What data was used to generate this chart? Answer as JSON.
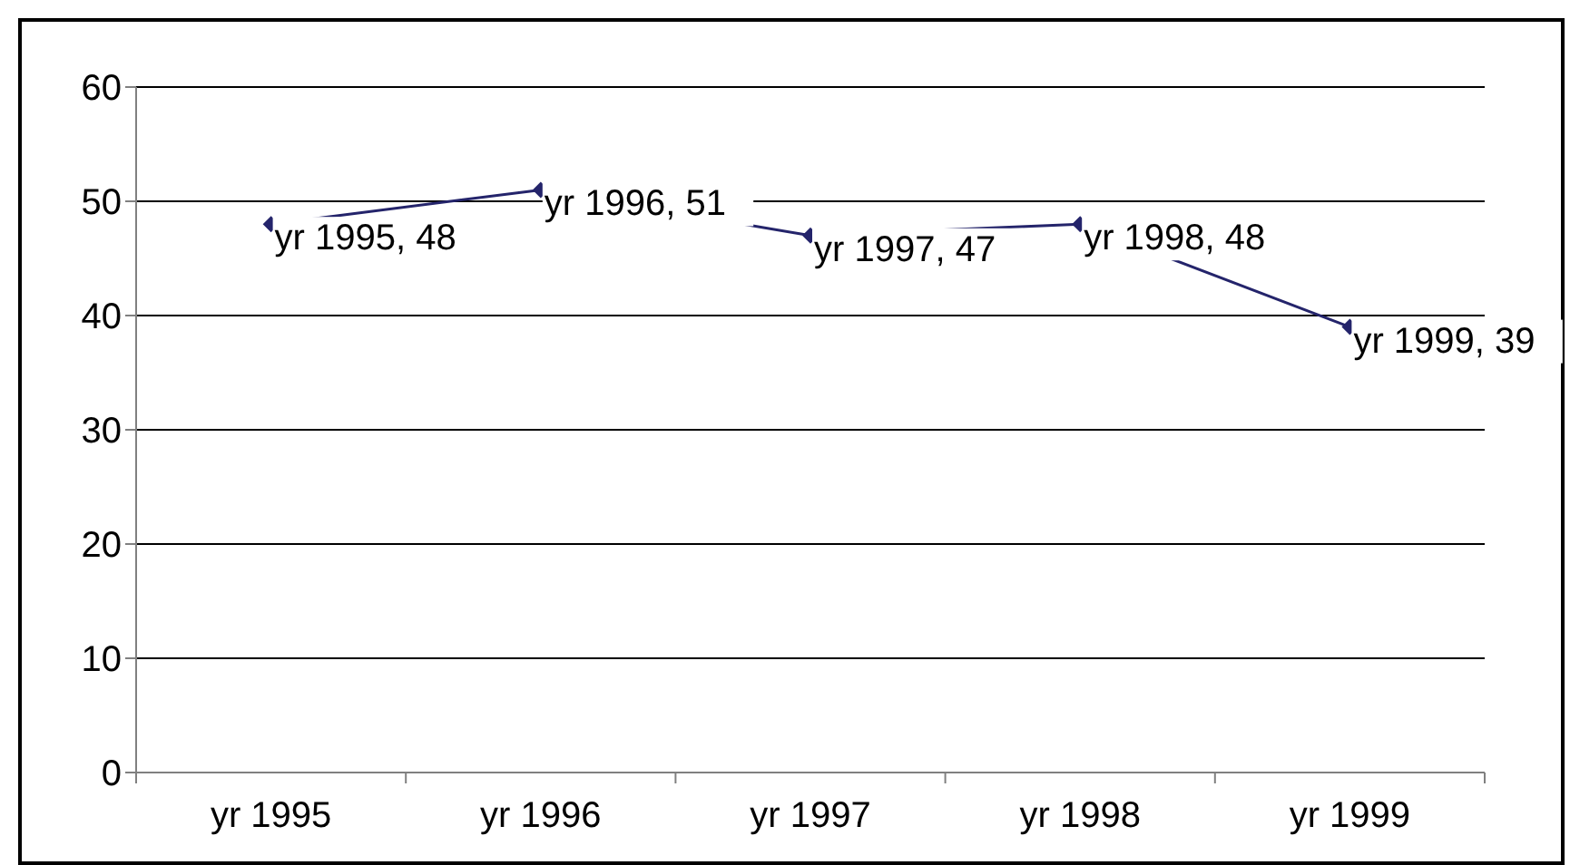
{
  "chart_data": {
    "type": "line",
    "categories": [
      "yr 1995",
      "yr 1996",
      "yr 1997",
      "yr 1998",
      "yr 1999"
    ],
    "series": [
      {
        "color": "#24246b",
        "values": [
          48,
          51,
          47,
          48,
          39
        ],
        "value_labels": [
          "yr 1995, 48",
          "yr 1996, 51",
          "yr 1997, 47",
          "yr 1998, 48",
          "yr 1999, 39"
        ]
      }
    ],
    "ylim": [
      0,
      60
    ],
    "yticks": [
      0,
      10,
      20,
      30,
      40,
      50,
      60
    ],
    "grid": "y",
    "marker": "diamond",
    "line_style": "solid"
  }
}
